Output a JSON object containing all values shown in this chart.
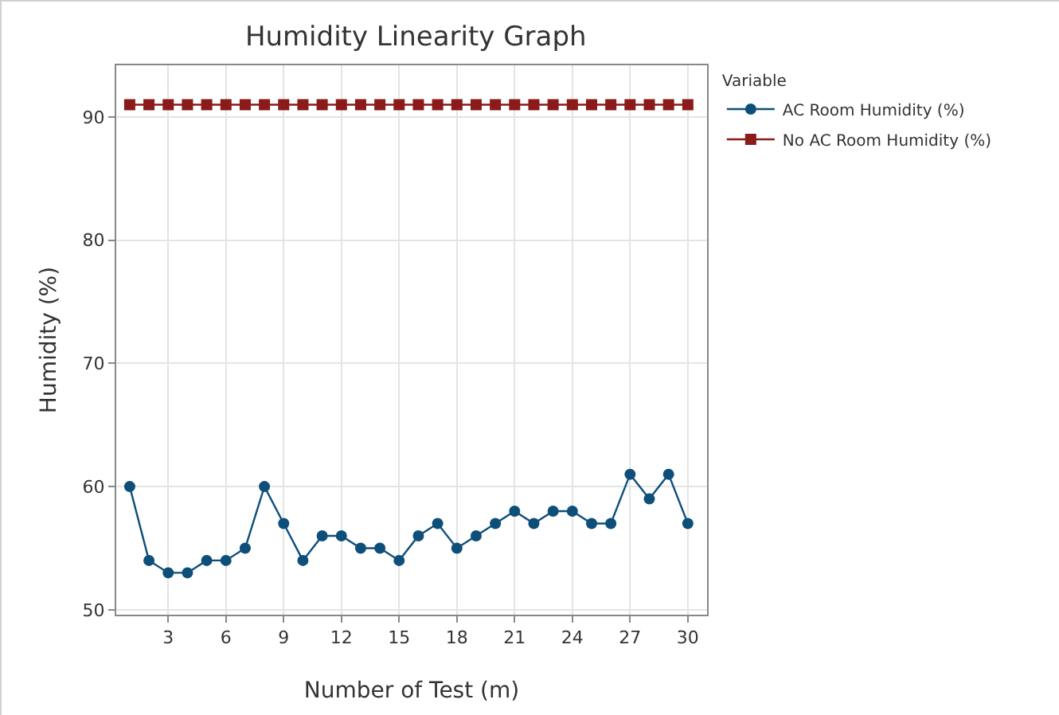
{
  "chart_data": {
    "type": "line",
    "title": "Humidity Linearity Graph",
    "xlabel": "Number of Test (m)",
    "ylabel": "Humidity (%)",
    "legend_title": "Variable",
    "x": [
      1,
      2,
      3,
      4,
      5,
      6,
      7,
      8,
      9,
      10,
      11,
      12,
      13,
      14,
      15,
      16,
      17,
      18,
      19,
      20,
      21,
      22,
      23,
      24,
      25,
      26,
      27,
      28,
      29,
      30
    ],
    "series": [
      {
        "name": "AC Room Humidity (%)",
        "color": "#0e4f7a",
        "marker": "circle",
        "values": [
          60,
          54,
          53,
          53,
          54,
          54,
          55,
          60,
          57,
          54,
          56,
          56,
          55,
          55,
          54,
          56,
          57,
          55,
          56,
          57,
          58,
          57,
          58,
          58,
          57,
          57,
          61,
          59,
          61,
          57
        ]
      },
      {
        "name": "No AC Room Humidity (%)",
        "color": "#8b1a1a",
        "marker": "square",
        "values": [
          91,
          91,
          91,
          91,
          91,
          91,
          91,
          91,
          91,
          91,
          91,
          91,
          91,
          91,
          91,
          91,
          91,
          91,
          91,
          91,
          91,
          91,
          91,
          91,
          91,
          91,
          91,
          91,
          91,
          91
        ]
      }
    ],
    "xlim": [
      0.3,
      31
    ],
    "xticks": [
      3,
      6,
      9,
      12,
      15,
      18,
      21,
      24,
      27,
      30
    ],
    "ylim": [
      49.6,
      94.2
    ],
    "yticks": [
      50,
      60,
      70,
      80,
      90
    ],
    "grid": true,
    "legend": "top right",
    "line_style": "solid"
  }
}
